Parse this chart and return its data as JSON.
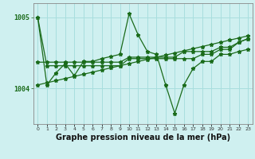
{
  "x": [
    0,
    1,
    2,
    3,
    4,
    5,
    6,
    7,
    8,
    9,
    10,
    11,
    12,
    13,
    14,
    15,
    16,
    17,
    18,
    19,
    20,
    21,
    22,
    23
  ],
  "y_zigzag": [
    1005.0,
    1004.05,
    1004.22,
    1004.35,
    1004.18,
    1004.38,
    1004.38,
    1004.42,
    1004.45,
    1004.48,
    1005.05,
    1004.75,
    1004.52,
    1004.48,
    1004.05,
    1003.65,
    1004.05,
    1004.28,
    1004.38,
    1004.38,
    1004.48,
    1004.48,
    1004.52,
    1004.55
  ],
  "y_trend": [
    1004.05,
    1004.08,
    1004.11,
    1004.14,
    1004.17,
    1004.2,
    1004.23,
    1004.26,
    1004.29,
    1004.32,
    1004.35,
    1004.38,
    1004.41,
    1004.44,
    1004.47,
    1004.5,
    1004.53,
    1004.56,
    1004.59,
    1004.62,
    1004.65,
    1004.68,
    1004.71,
    1004.74
  ],
  "y_flat_high": [
    1004.37,
    1004.37,
    1004.37,
    1004.37,
    1004.37,
    1004.37,
    1004.37,
    1004.37,
    1004.37,
    1004.37,
    1004.44,
    1004.44,
    1004.44,
    1004.44,
    1004.44,
    1004.44,
    1004.52,
    1004.52,
    1004.52,
    1004.52,
    1004.58,
    1004.58,
    1004.65,
    1004.7
  ],
  "y_flat_low": [
    1005.0,
    1004.32,
    1004.32,
    1004.32,
    1004.32,
    1004.32,
    1004.32,
    1004.32,
    1004.32,
    1004.32,
    1004.42,
    1004.42,
    1004.42,
    1004.42,
    1004.42,
    1004.42,
    1004.42,
    1004.42,
    1004.48,
    1004.48,
    1004.55,
    1004.55,
    1004.65,
    1004.7
  ],
  "bg_color": "#cff0f0",
  "grid_color": "#a8dede",
  "line_color": "#1a6b1a",
  "xlabel_label": "Graphe pression niveau de la mer (hPa)",
  "ylim": [
    1003.5,
    1005.2
  ],
  "yticks": [
    1004,
    1005
  ],
  "tick_fontsize": 6,
  "xlabel_fontsize": 7
}
